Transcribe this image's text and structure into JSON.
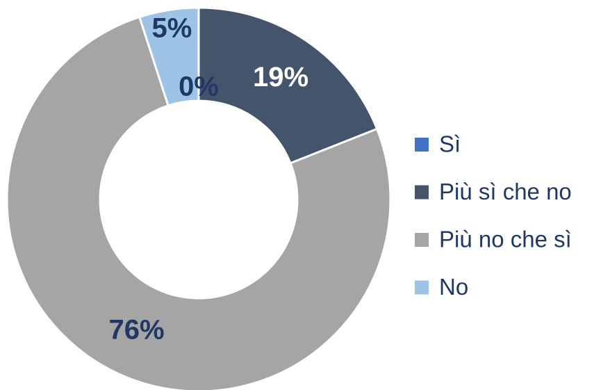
{
  "chart_data": {
    "type": "donut",
    "categories": [
      "Sì",
      "Più sì che no",
      "Più no che sì",
      "No"
    ],
    "values": [
      0,
      19,
      76,
      5
    ],
    "value_labels": [
      "0%",
      "19%",
      "76%",
      "5%"
    ],
    "colors": [
      "#4472c4",
      "#44546a",
      "#a5a5a5",
      "#9dc3e6"
    ],
    "legend": "right"
  }
}
